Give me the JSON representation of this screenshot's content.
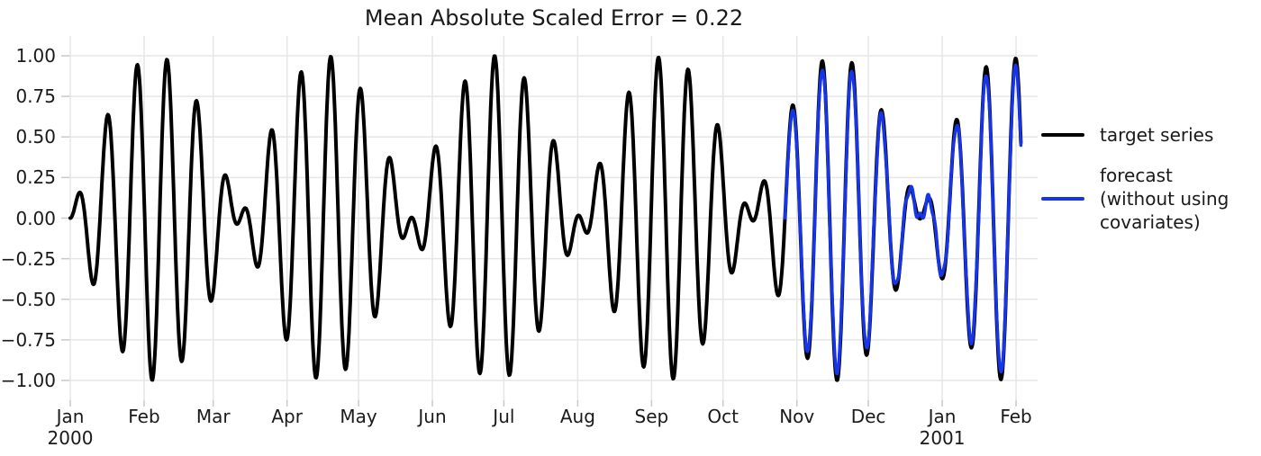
{
  "title": "Mean Absolute Scaled Error = 0.22",
  "colors": {
    "target_series": "#000000",
    "forecast_series": "#1634e8",
    "gridline": "#e6e6e6",
    "tick_mark": "#c9c9c9",
    "text": "#1a1a1a",
    "background": "#ffffff"
  },
  "legend": {
    "items": [
      {
        "label": "target series",
        "color": "#000000",
        "swatch_height": 4
      },
      {
        "label": "forecast\n(without using\ncovariates)",
        "color": "#1634e8",
        "swatch_height": 4
      }
    ]
  },
  "chart_data": {
    "type": "line",
    "title": "Mean Absolute Scaled Error = 0.22",
    "mase_value": 0.22,
    "xlabel": "",
    "ylabel": "",
    "grid": true,
    "legend_position": "right",
    "x_start_date": "2000-01-01",
    "n_days": 400,
    "ylim": [
      -1.12,
      1.12
    ],
    "y_ticks": [
      {
        "label": "1.00",
        "value": 1.0
      },
      {
        "label": "0.75",
        "value": 0.75
      },
      {
        "label": "0.50",
        "value": 0.5
      },
      {
        "label": "0.25",
        "value": 0.25
      },
      {
        "label": "0.00",
        "value": 0.0
      },
      {
        "label": "−0.25",
        "value": -0.25
      },
      {
        "label": "−0.50",
        "value": -0.5
      },
      {
        "label": "−0.75",
        "value": -0.75
      },
      {
        "label": "−1.00",
        "value": -1.0
      }
    ],
    "x_ticks": [
      {
        "label": "Jan",
        "sublabel": "2000",
        "day": 0
      },
      {
        "label": "Feb",
        "sublabel": "",
        "day": 31
      },
      {
        "label": "Mar",
        "sublabel": "",
        "day": 60
      },
      {
        "label": "Apr",
        "sublabel": "",
        "day": 91
      },
      {
        "label": "May",
        "sublabel": "",
        "day": 121
      },
      {
        "label": "Jun",
        "sublabel": "",
        "day": 152
      },
      {
        "label": "Jul",
        "sublabel": "",
        "day": 182
      },
      {
        "label": "Aug",
        "sublabel": "",
        "day": 213
      },
      {
        "label": "Sep",
        "sublabel": "",
        "day": 244
      },
      {
        "label": "Oct",
        "sublabel": "",
        "day": 274
      },
      {
        "label": "Nov",
        "sublabel": "",
        "day": 305
      },
      {
        "label": "Dec",
        "sublabel": "",
        "day": 335
      },
      {
        "label": "Jan",
        "sublabel": "2001",
        "day": 366
      },
      {
        "label": "Feb",
        "sublabel": "",
        "day": 397
      }
    ],
    "series": [
      {
        "name": "target series",
        "color": "#000000",
        "line_width": 4,
        "t_start": 0,
        "t_end": 399,
        "generator": {
          "formula": "y(t) = sin(2π·f_carrier·t) · sin(2π·f_envelope·t), t in days",
          "f_carrier_per_day": 0.08,
          "f_envelope_per_day": 0.007
        }
      },
      {
        "name": "forecast (without using covariates)",
        "color": "#1634e8",
        "line_width": 3.5,
        "t_start": 300,
        "t_end": 399,
        "generator": {
          "formula": "ŷ(t) = scale·y(t) + wiggle_amp·ramp·(1 − extreme_damp·|y(t)|)·sin(wiggle_freq·(t−300)+wiggle_phase)",
          "scale": 0.95,
          "wiggle_amp": 0.035,
          "wiggle_freq": 1.9,
          "wiggle_phase": 0.7,
          "ramp_days": 15,
          "extreme_damp": 0.7
        }
      }
    ],
    "key_points": [
      {
        "day": 3,
        "value": 0.13,
        "note": "first small peak after Jan 1 2000"
      },
      {
        "day": 34,
        "value": -1.0,
        "note": "deep trough early Feb 2000"
      },
      {
        "day": 178,
        "value": 1.0,
        "note": "maximum just before Jul 2000"
      },
      {
        "day": 300,
        "value": 0.0,
        "note": "forecast (blue) begins, late Oct 2000"
      },
      {
        "day": 353,
        "value": 0.17,
        "note": "small double-bump region where forecast deviates, late Dec 2000"
      },
      {
        "day": 397,
        "value": 0.98,
        "note": "final peak near Feb 2001"
      },
      {
        "day": 399,
        "value": 0.46,
        "note": "series end value"
      }
    ]
  }
}
